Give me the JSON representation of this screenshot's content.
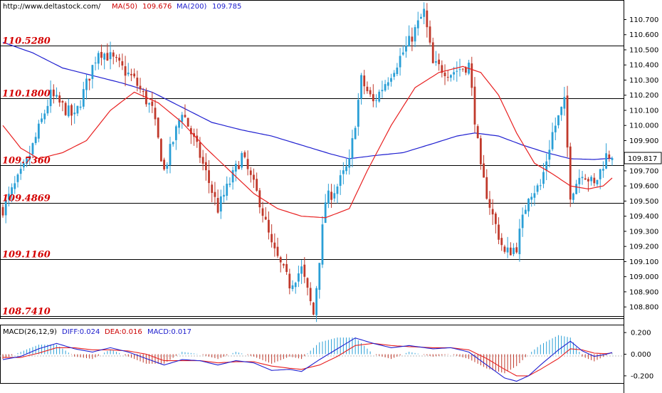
{
  "header": {
    "url": "http://www.deltastock.com/",
    "ma50_label": "MA(50)",
    "ma50_value": "109.676",
    "ma200_label": "MA(200)",
    "ma200_value": "109.785"
  },
  "macd_header": {
    "label": "MACD(26,12,9)",
    "diff": "DIFF:0.024",
    "dea": "DEA:0.016",
    "macd": "MACD:0.017"
  },
  "current_price": "109.817",
  "colors": {
    "up": "#2a9fd6",
    "down": "#c0392b",
    "ma50": "#e82020",
    "ma200": "#1f1fd0",
    "levels": "#d40000",
    "header_red": "#cc0000",
    "header_blue": "#1a1acc"
  },
  "chart_data": [
    {
      "type": "candlestick",
      "x_count": 205,
      "ylim": [
        108.73,
        110.82
      ],
      "yticks": [
        108.8,
        108.9,
        109.0,
        109.1,
        109.2,
        109.3,
        109.4,
        109.5,
        109.6,
        109.7,
        109.8,
        109.9,
        110.0,
        110.1,
        110.2,
        110.3,
        110.4,
        110.5,
        110.6,
        110.7
      ],
      "ytick_labels": [
        "108.800",
        "108.900",
        "109.000",
        "109.100",
        "109.200",
        "109.300",
        "109.400",
        "109.500",
        "109.600",
        "109.700",
        "109.800",
        "109.900",
        "110.000",
        "110.100",
        "110.200",
        "110.300",
        "110.400",
        "110.500",
        "110.600",
        "110.700"
      ],
      "levels": [
        {
          "value": 110.528,
          "label": "110.5280"
        },
        {
          "value": 110.18,
          "label": "110.1800"
        },
        {
          "value": 109.736,
          "label": "109.7360"
        },
        {
          "value": 109.4869,
          "label": "109.4869"
        },
        {
          "value": 109.116,
          "label": "109.1160"
        },
        {
          "value": 108.741,
          "label": "108.7410"
        }
      ],
      "close_anchors": [
        [
          0,
          109.45
        ],
        [
          8,
          109.75
        ],
        [
          16,
          110.2
        ],
        [
          24,
          110.05
        ],
        [
          32,
          110.5
        ],
        [
          36,
          110.45
        ],
        [
          44,
          110.3
        ],
        [
          50,
          110.1
        ],
        [
          54,
          109.7
        ],
        [
          60,
          110.1
        ],
        [
          66,
          109.8
        ],
        [
          72,
          109.45
        ],
        [
          80,
          109.8
        ],
        [
          86,
          109.5
        ],
        [
          90,
          109.2
        ],
        [
          96,
          108.95
        ],
        [
          100,
          109.05
        ],
        [
          104,
          108.75
        ],
        [
          108,
          109.5
        ],
        [
          112,
          109.6
        ],
        [
          116,
          109.75
        ],
        [
          120,
          110.3
        ],
        [
          124,
          110.15
        ],
        [
          130,
          110.35
        ],
        [
          136,
          110.55
        ],
        [
          141,
          110.75
        ],
        [
          144,
          110.4
        ],
        [
          150,
          110.35
        ],
        [
          156,
          110.4
        ],
        [
          160,
          109.7
        ],
        [
          164,
          109.4
        ],
        [
          168,
          109.15
        ],
        [
          172,
          109.2
        ],
        [
          176,
          109.55
        ],
        [
          180,
          109.6
        ],
        [
          184,
          109.95
        ],
        [
          188,
          110.15
        ],
        [
          190,
          109.55
        ],
        [
          194,
          109.7
        ],
        [
          198,
          109.6
        ],
        [
          202,
          109.8
        ],
        [
          205,
          109.817
        ]
      ],
      "ma50_anchors": [
        [
          0,
          110.0
        ],
        [
          6,
          109.85
        ],
        [
          12,
          109.78
        ],
        [
          20,
          109.82
        ],
        [
          28,
          109.9
        ],
        [
          36,
          110.1
        ],
        [
          44,
          110.22
        ],
        [
          52,
          110.15
        ],
        [
          60,
          110.02
        ],
        [
          68,
          109.85
        ],
        [
          76,
          109.7
        ],
        [
          84,
          109.55
        ],
        [
          92,
          109.45
        ],
        [
          100,
          109.4
        ],
        [
          108,
          109.39
        ],
        [
          116,
          109.45
        ],
        [
          122,
          109.7
        ],
        [
          130,
          110.0
        ],
        [
          138,
          110.25
        ],
        [
          146,
          110.35
        ],
        [
          154,
          110.39
        ],
        [
          160,
          110.35
        ],
        [
          166,
          110.2
        ],
        [
          172,
          109.95
        ],
        [
          178,
          109.75
        ],
        [
          184,
          109.68
        ],
        [
          190,
          109.6
        ],
        [
          196,
          109.58
        ],
        [
          201,
          109.6
        ],
        [
          205,
          109.67
        ]
      ],
      "ma200_anchors": [
        [
          0,
          110.55
        ],
        [
          10,
          110.48
        ],
        [
          20,
          110.38
        ],
        [
          30,
          110.33
        ],
        [
          40,
          110.28
        ],
        [
          50,
          110.22
        ],
        [
          60,
          110.12
        ],
        [
          70,
          110.02
        ],
        [
          80,
          109.97
        ],
        [
          90,
          109.93
        ],
        [
          100,
          109.87
        ],
        [
          110,
          109.81
        ],
        [
          116,
          109.78
        ],
        [
          124,
          109.8
        ],
        [
          134,
          109.82
        ],
        [
          144,
          109.88
        ],
        [
          152,
          109.93
        ],
        [
          158,
          109.95
        ],
        [
          166,
          109.93
        ],
        [
          174,
          109.87
        ],
        [
          182,
          109.82
        ],
        [
          190,
          109.78
        ],
        [
          198,
          109.775
        ],
        [
          205,
          109.785
        ]
      ]
    },
    {
      "type": "macd",
      "ylim": [
        -0.26,
        0.26
      ],
      "yticks": [
        0.2,
        0.0,
        -0.2
      ],
      "ytick_labels": [
        "0.200",
        "0.000",
        "-0.200"
      ],
      "diff_anchors": [
        [
          0,
          -0.05
        ],
        [
          6,
          -0.02
        ],
        [
          12,
          0.05
        ],
        [
          18,
          0.1
        ],
        [
          24,
          0.05
        ],
        [
          30,
          0.02
        ],
        [
          36,
          0.06
        ],
        [
          42,
          0.02
        ],
        [
          48,
          -0.04
        ],
        [
          54,
          -0.1
        ],
        [
          60,
          -0.05
        ],
        [
          66,
          -0.06
        ],
        [
          72,
          -0.1
        ],
        [
          78,
          -0.06
        ],
        [
          84,
          -0.08
        ],
        [
          90,
          -0.15
        ],
        [
          96,
          -0.14
        ],
        [
          100,
          -0.16
        ],
        [
          106,
          -0.05
        ],
        [
          112,
          0.05
        ],
        [
          118,
          0.15
        ],
        [
          124,
          0.1
        ],
        [
          130,
          0.06
        ],
        [
          136,
          0.08
        ],
        [
          144,
          0.05
        ],
        [
          150,
          0.06
        ],
        [
          156,
          0.02
        ],
        [
          162,
          -0.1
        ],
        [
          168,
          -0.22
        ],
        [
          172,
          -0.25
        ],
        [
          176,
          -0.2
        ],
        [
          180,
          -0.1
        ],
        [
          186,
          0.04
        ],
        [
          190,
          0.12
        ],
        [
          194,
          0.03
        ],
        [
          198,
          -0.02
        ],
        [
          202,
          0.0
        ],
        [
          205,
          0.024
        ]
      ],
      "dea_anchors": [
        [
          0,
          -0.03
        ],
        [
          6,
          -0.03
        ],
        [
          12,
          0.01
        ],
        [
          18,
          0.06
        ],
        [
          24,
          0.06
        ],
        [
          30,
          0.04
        ],
        [
          36,
          0.04
        ],
        [
          42,
          0.03
        ],
        [
          48,
          0.0
        ],
        [
          54,
          -0.06
        ],
        [
          60,
          -0.06
        ],
        [
          66,
          -0.06
        ],
        [
          72,
          -0.08
        ],
        [
          78,
          -0.07
        ],
        [
          84,
          -0.07
        ],
        [
          90,
          -0.11
        ],
        [
          96,
          -0.13
        ],
        [
          100,
          -0.14
        ],
        [
          106,
          -0.1
        ],
        [
          112,
          -0.02
        ],
        [
          118,
          0.08
        ],
        [
          124,
          0.1
        ],
        [
          130,
          0.08
        ],
        [
          136,
          0.07
        ],
        [
          144,
          0.06
        ],
        [
          150,
          0.06
        ],
        [
          156,
          0.04
        ],
        [
          162,
          -0.04
        ],
        [
          168,
          -0.14
        ],
        [
          172,
          -0.2
        ],
        [
          176,
          -0.2
        ],
        [
          180,
          -0.14
        ],
        [
          186,
          -0.04
        ],
        [
          190,
          0.05
        ],
        [
          194,
          0.04
        ],
        [
          198,
          0.01
        ],
        [
          202,
          0.005
        ],
        [
          205,
          0.016
        ]
      ]
    }
  ]
}
